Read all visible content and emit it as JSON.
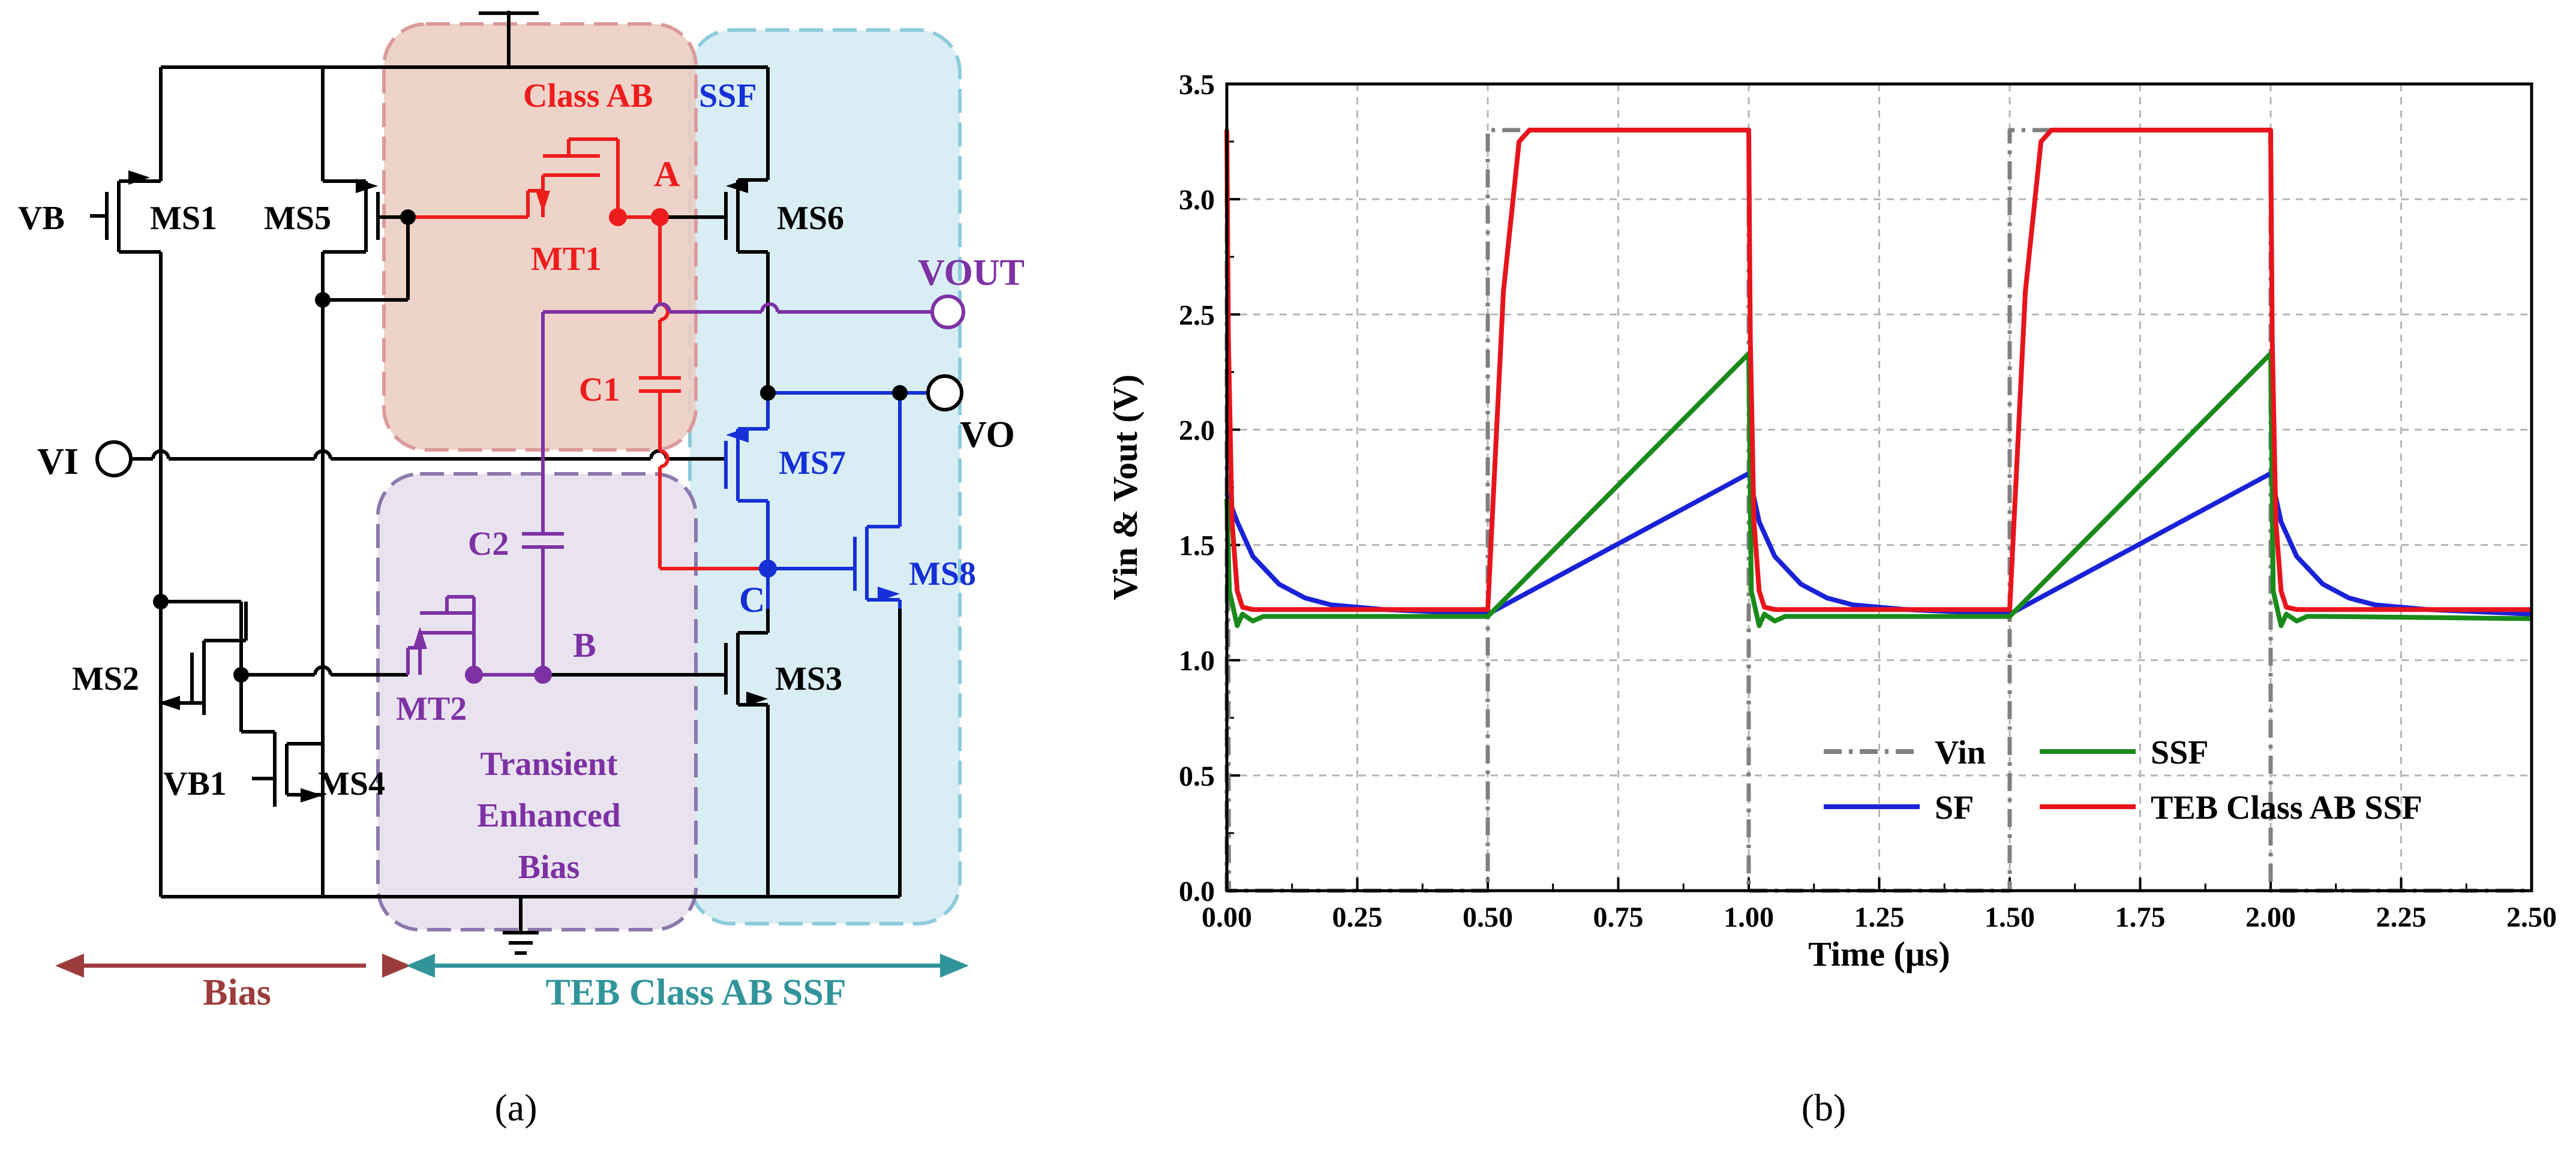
{
  "panel_a": {
    "caption": "(a)",
    "regions": {
      "classab_title": "Class AB",
      "ssf_title": "SSF",
      "teb_lines": [
        "Transient",
        "Enhanced",
        "Bias"
      ]
    },
    "transistors": {
      "ms1": "MS1",
      "ms2": "MS2",
      "ms3": "MS3",
      "ms4": "MS4",
      "ms5": "MS5",
      "ms6": "MS6",
      "ms7": "MS7",
      "ms8": "MS8",
      "mt1": "MT1",
      "mt2": "MT2"
    },
    "capacitors": {
      "c1": "C1",
      "c2": "C2"
    },
    "nodes": {
      "a": "A",
      "b": "B",
      "c": "C"
    },
    "ports": {
      "vb": "VB",
      "vb1": "VB1",
      "vi": "VI",
      "vo": "VO",
      "vout": "VOUT"
    },
    "brackets": {
      "bias": "Bias",
      "teb": "TEB Class AB SSF"
    },
    "colors": {
      "red": "#ee1c1c",
      "blue": "#1430d6",
      "purple": "#7d31a4",
      "black": "#000000",
      "brown": "#9b3b3b",
      "teal": "#31949b"
    }
  },
  "panel_b": {
    "caption": "(b)",
    "chart_data": {
      "type": "line",
      "title": "",
      "xlabel": "Time (μs)",
      "ylabel": "Vin & Vout (V)",
      "xlim": [
        0,
        2.5
      ],
      "ylim": [
        0,
        3.5
      ],
      "xticks": [
        "0.00",
        "0.25",
        "0.50",
        "0.75",
        "1.00",
        "1.25",
        "1.50",
        "1.75",
        "2.00",
        "2.25",
        "2.50"
      ],
      "yticks": [
        "0.0",
        "0.5",
        "1.0",
        "1.5",
        "2.0",
        "2.5",
        "3.0",
        "3.5"
      ],
      "grid": true,
      "legend_position": "bottom-right",
      "series": [
        {
          "name": "Vin",
          "color": "#808080",
          "style": "dash-dot",
          "x": [
            0,
            0.0,
            0.004,
            0.5,
            0.5,
            0.52,
            1.0,
            1.0,
            1.5,
            1.5,
            1.52,
            2.0,
            2.0,
            2.5
          ],
          "y": [
            0,
            3.3,
            0,
            0,
            3.3,
            3.3,
            3.3,
            0,
            0,
            3.3,
            3.3,
            3.3,
            0,
            0
          ]
        },
        {
          "name": "SSF",
          "color": "#1a8a1a",
          "style": "solid",
          "x": [
            0,
            0.005,
            0.02,
            0.03,
            0.05,
            0.07,
            0.1,
            0.5,
            1.0,
            1.005,
            1.02,
            1.03,
            1.05,
            1.07,
            1.1,
            1.5,
            2.0,
            2.005,
            2.02,
            2.03,
            2.05,
            2.07,
            2.1,
            2.5
          ],
          "y": [
            1.7,
            1.3,
            1.15,
            1.2,
            1.17,
            1.19,
            1.19,
            1.19,
            2.33,
            1.3,
            1.15,
            1.2,
            1.17,
            1.19,
            1.19,
            1.19,
            2.33,
            1.3,
            1.15,
            1.2,
            1.17,
            1.19,
            1.19,
            1.18
          ]
        },
        {
          "name": "SF",
          "color": "#1a22d8",
          "style": "solid",
          "x": [
            0,
            0.02,
            0.05,
            0.1,
            0.15,
            0.2,
            0.3,
            0.4,
            0.5,
            1.0,
            1.02,
            1.05,
            1.1,
            1.15,
            1.2,
            1.3,
            1.4,
            1.5,
            2.0,
            2.02,
            2.05,
            2.1,
            2.15,
            2.2,
            2.3,
            2.4,
            2.5
          ],
          "y": [
            1.72,
            1.6,
            1.45,
            1.33,
            1.27,
            1.24,
            1.22,
            1.21,
            1.2,
            1.81,
            1.6,
            1.45,
            1.33,
            1.27,
            1.24,
            1.22,
            1.21,
            1.2,
            1.81,
            1.6,
            1.45,
            1.33,
            1.27,
            1.24,
            1.22,
            1.21,
            1.2
          ]
        },
        {
          "name": "TEB Class AB SSF",
          "color": "#e8141c",
          "style": "solid",
          "x": [
            0,
            0.003,
            0.01,
            0.02,
            0.03,
            0.05,
            0.5,
            0.53,
            0.56,
            0.58,
            1.0,
            1.003,
            1.01,
            1.02,
            1.03,
            1.05,
            1.5,
            1.53,
            1.56,
            1.58,
            2.0,
            2.003,
            2.01,
            2.02,
            2.03,
            2.05,
            2.5
          ],
          "y": [
            3.3,
            2.4,
            1.6,
            1.3,
            1.23,
            1.22,
            1.22,
            2.6,
            3.25,
            3.3,
            3.3,
            2.4,
            1.6,
            1.3,
            1.23,
            1.22,
            1.22,
            2.6,
            3.25,
            3.3,
            3.3,
            2.4,
            1.6,
            1.3,
            1.23,
            1.22,
            1.22
          ]
        }
      ]
    }
  }
}
